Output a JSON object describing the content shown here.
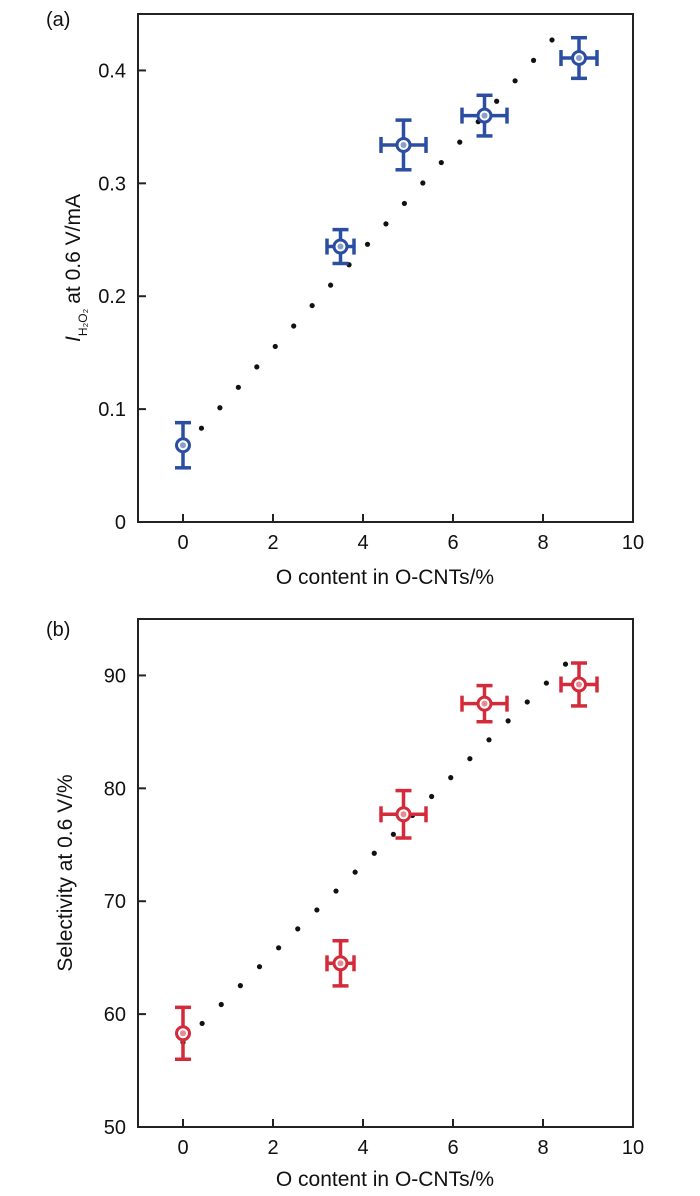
{
  "chart_data": [
    {
      "type": "scatter",
      "panel_label": "(a)",
      "xlabel": "O content in O-CNTs/%",
      "ylabel": {
        "symbol": "I",
        "subscript": "H₂O₂",
        "rest": "at 0.6 V/mA"
      },
      "xlim": [
        -1,
        10
      ],
      "ylim": [
        0,
        0.45
      ],
      "xticks": [
        0,
        2,
        4,
        6,
        8,
        10
      ],
      "xtick_labels": [
        "0",
        "2",
        "4",
        "6",
        "8",
        "10"
      ],
      "yticks": [
        0,
        0.1,
        0.2,
        0.3,
        0.4
      ],
      "ytick_labels": [
        "0",
        "0.1",
        "0.2",
        "0.3",
        "0.4"
      ],
      "marker_color": "#2b4ea2",
      "points": [
        {
          "x": 0.0,
          "y": 0.068,
          "xerr": 0.0,
          "yerr": 0.02
        },
        {
          "x": 3.5,
          "y": 0.244,
          "xerr": 0.3,
          "yerr": 0.015
        },
        {
          "x": 4.9,
          "y": 0.334,
          "xerr": 0.5,
          "yerr": 0.022
        },
        {
          "x": 6.7,
          "y": 0.36,
          "xerr": 0.5,
          "yerr": 0.018
        },
        {
          "x": 8.8,
          "y": 0.411,
          "xerr": 0.4,
          "yerr": 0.018
        }
      ],
      "fit_line": {
        "style": "dotted",
        "x0": 0.0,
        "y0": 0.065,
        "x1": 8.2,
        "y1": 0.427
      }
    },
    {
      "type": "scatter",
      "panel_label": "(b)",
      "xlabel": "O content in O-CNTs/%",
      "ylabel": {
        "symbol": "",
        "subscript": "",
        "rest": "Selectivity at 0.6 V/%"
      },
      "xlim": [
        -1,
        10
      ],
      "ylim": [
        50,
        95
      ],
      "xticks": [
        0,
        2,
        4,
        6,
        8,
        10
      ],
      "xtick_labels": [
        "0",
        "2",
        "4",
        "6",
        "8",
        "10"
      ],
      "yticks": [
        50,
        60,
        70,
        80,
        90
      ],
      "ytick_labels": [
        "50",
        "60",
        "70",
        "80",
        "90"
      ],
      "marker_color": "#d42b3a",
      "points": [
        {
          "x": 0.0,
          "y": 58.3,
          "xerr": 0.0,
          "yerr": 2.3
        },
        {
          "x": 3.5,
          "y": 64.5,
          "xerr": 0.3,
          "yerr": 2.0
        },
        {
          "x": 4.9,
          "y": 77.7,
          "xerr": 0.5,
          "yerr": 2.1
        },
        {
          "x": 6.7,
          "y": 87.5,
          "xerr": 0.5,
          "yerr": 1.6
        },
        {
          "x": 8.8,
          "y": 89.2,
          "xerr": 0.4,
          "yerr": 1.9
        }
      ],
      "fit_line": {
        "style": "dotted",
        "x0": 0.0,
        "y0": 57.5,
        "x1": 8.5,
        "y1": 91.0
      }
    }
  ]
}
